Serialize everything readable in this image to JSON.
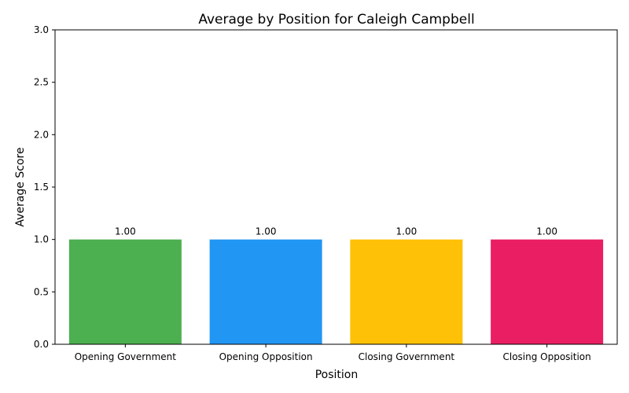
{
  "chart_data": {
    "type": "bar",
    "title": "Average by Position for Caleigh Campbell",
    "xlabel": "Position",
    "ylabel": "Average Score",
    "categories": [
      "Opening Government",
      "Opening Opposition",
      "Closing Government",
      "Closing Opposition"
    ],
    "values": [
      1.0,
      1.0,
      1.0,
      1.0
    ],
    "data_labels": [
      "1.00",
      "1.00",
      "1.00",
      "1.00"
    ],
    "colors": [
      "#4caf50",
      "#2196f3",
      "#ffc107",
      "#e91e63"
    ],
    "ylim": [
      0,
      3
    ],
    "yticks": [
      0,
      0.5,
      1,
      1.5,
      2,
      2.5,
      3
    ],
    "ytick_labels": [
      "0.0",
      "0.5",
      "1.0",
      "1.5",
      "2.0",
      "2.5",
      "3.0"
    ],
    "grid": false,
    "legend": "none"
  }
}
